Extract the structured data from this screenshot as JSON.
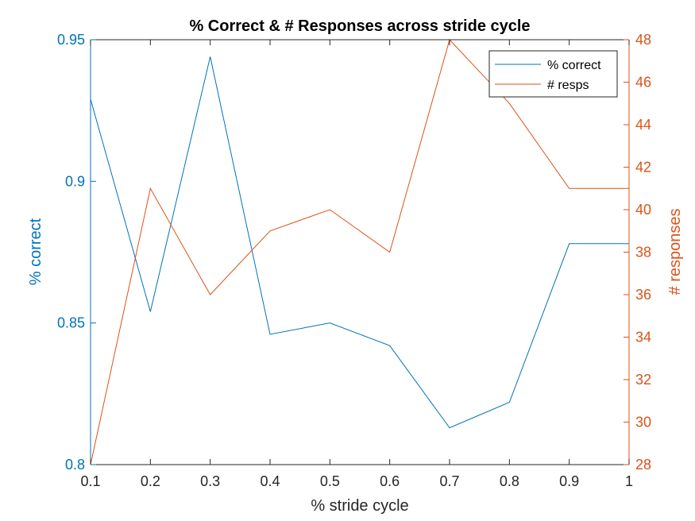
{
  "chart_data": {
    "type": "line",
    "title": "% Correct & # Responses across stride cycle",
    "xlabel": "% stride cycle",
    "ylabel_left": "% correct",
    "ylabel_right": "# responses",
    "x": [
      0.1,
      0.2,
      0.3,
      0.4,
      0.5,
      0.6,
      0.7,
      0.8,
      0.9,
      1.0
    ],
    "xlim": [
      0.1,
      1.0
    ],
    "xticks": [
      "0.1",
      "0.2",
      "0.3",
      "0.4",
      "0.5",
      "0.6",
      "0.7",
      "0.8",
      "0.9",
      "1"
    ],
    "ylim_left": [
      0.8,
      0.95
    ],
    "yticks_left": [
      "0.8",
      "0.85",
      "0.9",
      "0.95"
    ],
    "ylim_right": [
      28,
      48
    ],
    "yticks_right": [
      "28",
      "30",
      "32",
      "34",
      "36",
      "38",
      "40",
      "42",
      "44",
      "46",
      "48"
    ],
    "grid": false,
    "legend_position": "top-right",
    "series": [
      {
        "name": "% correct",
        "axis": "left",
        "color": "#0072BD",
        "values": [
          0.929,
          0.854,
          0.944,
          0.846,
          0.85,
          0.842,
          0.813,
          0.822,
          0.878,
          0.878
        ]
      },
      {
        "name": "# resps",
        "axis": "right",
        "color": "#D95319",
        "values": [
          28,
          41,
          36,
          39,
          40,
          38,
          48,
          45,
          41,
          41
        ]
      }
    ]
  }
}
